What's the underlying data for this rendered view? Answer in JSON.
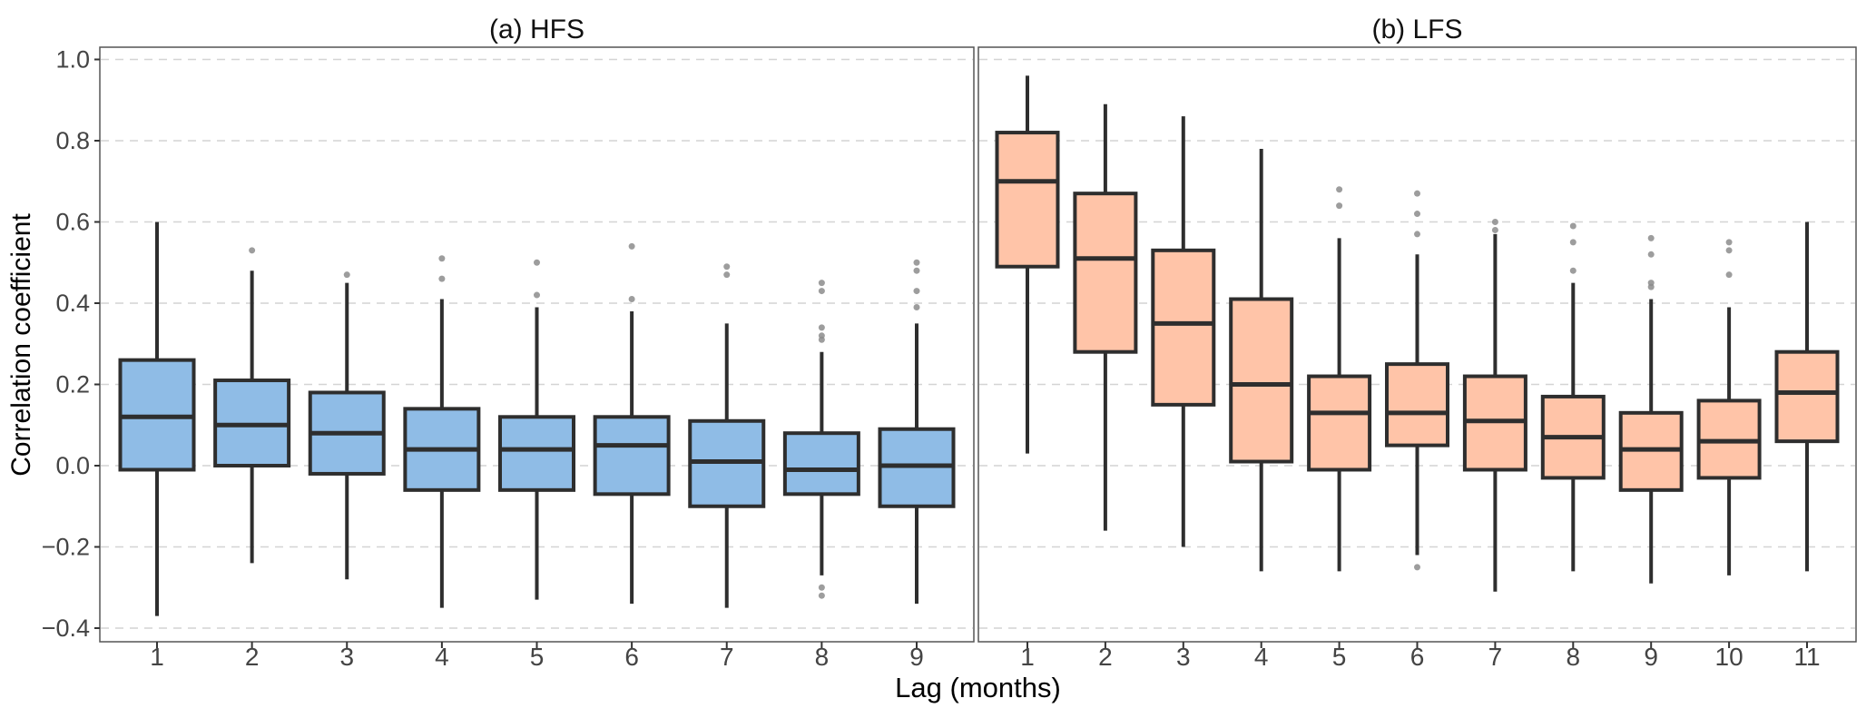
{
  "figure": {
    "background": "#ffffff"
  },
  "chart_data": {
    "type": "boxplot",
    "xlabel": "Lag (months)",
    "ylabel": "Correlation coefficient",
    "ylim": [
      -0.43,
      1.03
    ],
    "ytick_values": [
      1.0,
      0.8,
      0.6,
      0.4,
      0.2,
      0.0,
      -0.2,
      -0.4
    ],
    "ytick_labels": [
      "1.0",
      "0.8",
      "0.6",
      "0.4",
      "0.2",
      "0.0",
      "−0.2",
      "−0.4"
    ],
    "grid": {
      "horizontal": true,
      "style": "dashed",
      "color": "#d4d4d4"
    },
    "panel_border_color": "#555555",
    "tick_color": "#333333",
    "tick_label_color": "#444444",
    "panels": [
      {
        "title": "(a) HFS",
        "box_fill": "#8fbce6",
        "box_stroke": "#2e2e2e",
        "outlier_color": "#8c8c8c",
        "categories": [
          "1",
          "2",
          "3",
          "4",
          "5",
          "6",
          "7",
          "8",
          "9"
        ],
        "boxes": [
          {
            "lag": "1",
            "whisker_low": -0.37,
            "q1": -0.01,
            "median": 0.12,
            "q3": 0.26,
            "whisker_high": 0.6,
            "outliers": []
          },
          {
            "lag": "2",
            "whisker_low": -0.24,
            "q1": 0.0,
            "median": 0.1,
            "q3": 0.21,
            "whisker_high": 0.48,
            "outliers": [
              0.53
            ]
          },
          {
            "lag": "3",
            "whisker_low": -0.28,
            "q1": -0.02,
            "median": 0.08,
            "q3": 0.18,
            "whisker_high": 0.45,
            "outliers": [
              0.47
            ]
          },
          {
            "lag": "4",
            "whisker_low": -0.35,
            "q1": -0.06,
            "median": 0.04,
            "q3": 0.14,
            "whisker_high": 0.41,
            "outliers": [
              0.51,
              0.46
            ]
          },
          {
            "lag": "5",
            "whisker_low": -0.33,
            "q1": -0.06,
            "median": 0.04,
            "q3": 0.12,
            "whisker_high": 0.39,
            "outliers": [
              0.5,
              0.42
            ]
          },
          {
            "lag": "6",
            "whisker_low": -0.34,
            "q1": -0.07,
            "median": 0.05,
            "q3": 0.12,
            "whisker_high": 0.38,
            "outliers": [
              0.54,
              0.41
            ]
          },
          {
            "lag": "7",
            "whisker_low": -0.35,
            "q1": -0.1,
            "median": 0.01,
            "q3": 0.11,
            "whisker_high": 0.35,
            "outliers": [
              0.49,
              0.47
            ]
          },
          {
            "lag": "8",
            "whisker_low": -0.27,
            "q1": -0.07,
            "median": -0.01,
            "q3": 0.08,
            "whisker_high": 0.28,
            "outliers": [
              0.45,
              0.43,
              0.34,
              0.32,
              0.31,
              -0.3,
              -0.32
            ]
          },
          {
            "lag": "9",
            "whisker_low": -0.34,
            "q1": -0.1,
            "median": 0.0,
            "q3": 0.09,
            "whisker_high": 0.35,
            "outliers": [
              0.5,
              0.48,
              0.43,
              0.39
            ]
          }
        ]
      },
      {
        "title": "(b) LFS",
        "box_fill": "#ffc4a8",
        "box_stroke": "#2e2e2e",
        "outlier_color": "#8c8c8c",
        "categories": [
          "1",
          "2",
          "3",
          "4",
          "5",
          "6",
          "7",
          "8",
          "9",
          "10",
          "11"
        ],
        "boxes": [
          {
            "lag": "1",
            "whisker_low": 0.03,
            "q1": 0.49,
            "median": 0.7,
            "q3": 0.82,
            "whisker_high": 0.96,
            "outliers": []
          },
          {
            "lag": "2",
            "whisker_low": -0.16,
            "q1": 0.28,
            "median": 0.51,
            "q3": 0.67,
            "whisker_high": 0.89,
            "outliers": []
          },
          {
            "lag": "3",
            "whisker_low": -0.2,
            "q1": 0.15,
            "median": 0.35,
            "q3": 0.53,
            "whisker_high": 0.86,
            "outliers": []
          },
          {
            "lag": "4",
            "whisker_low": -0.26,
            "q1": 0.01,
            "median": 0.2,
            "q3": 0.41,
            "whisker_high": 0.78,
            "outliers": []
          },
          {
            "lag": "5",
            "whisker_low": -0.26,
            "q1": -0.01,
            "median": 0.13,
            "q3": 0.22,
            "whisker_high": 0.56,
            "outliers": [
              0.68,
              0.64
            ]
          },
          {
            "lag": "6",
            "whisker_low": -0.22,
            "q1": 0.05,
            "median": 0.13,
            "q3": 0.25,
            "whisker_high": 0.52,
            "outliers": [
              0.67,
              0.62,
              0.57,
              -0.25
            ]
          },
          {
            "lag": "7",
            "whisker_low": -0.31,
            "q1": -0.01,
            "median": 0.11,
            "q3": 0.22,
            "whisker_high": 0.57,
            "outliers": [
              0.6,
              0.58
            ]
          },
          {
            "lag": "8",
            "whisker_low": -0.26,
            "q1": -0.03,
            "median": 0.07,
            "q3": 0.17,
            "whisker_high": 0.45,
            "outliers": [
              0.59,
              0.55,
              0.48
            ]
          },
          {
            "lag": "9",
            "whisker_low": -0.29,
            "q1": -0.06,
            "median": 0.04,
            "q3": 0.13,
            "whisker_high": 0.41,
            "outliers": [
              0.56,
              0.52,
              0.45,
              0.44
            ]
          },
          {
            "lag": "10",
            "whisker_low": -0.27,
            "q1": -0.03,
            "median": 0.06,
            "q3": 0.16,
            "whisker_high": 0.39,
            "outliers": [
              0.55,
              0.53,
              0.47
            ]
          },
          {
            "lag": "11",
            "whisker_low": -0.26,
            "q1": 0.06,
            "median": 0.18,
            "q3": 0.28,
            "whisker_high": 0.6,
            "outliers": []
          }
        ]
      }
    ]
  }
}
